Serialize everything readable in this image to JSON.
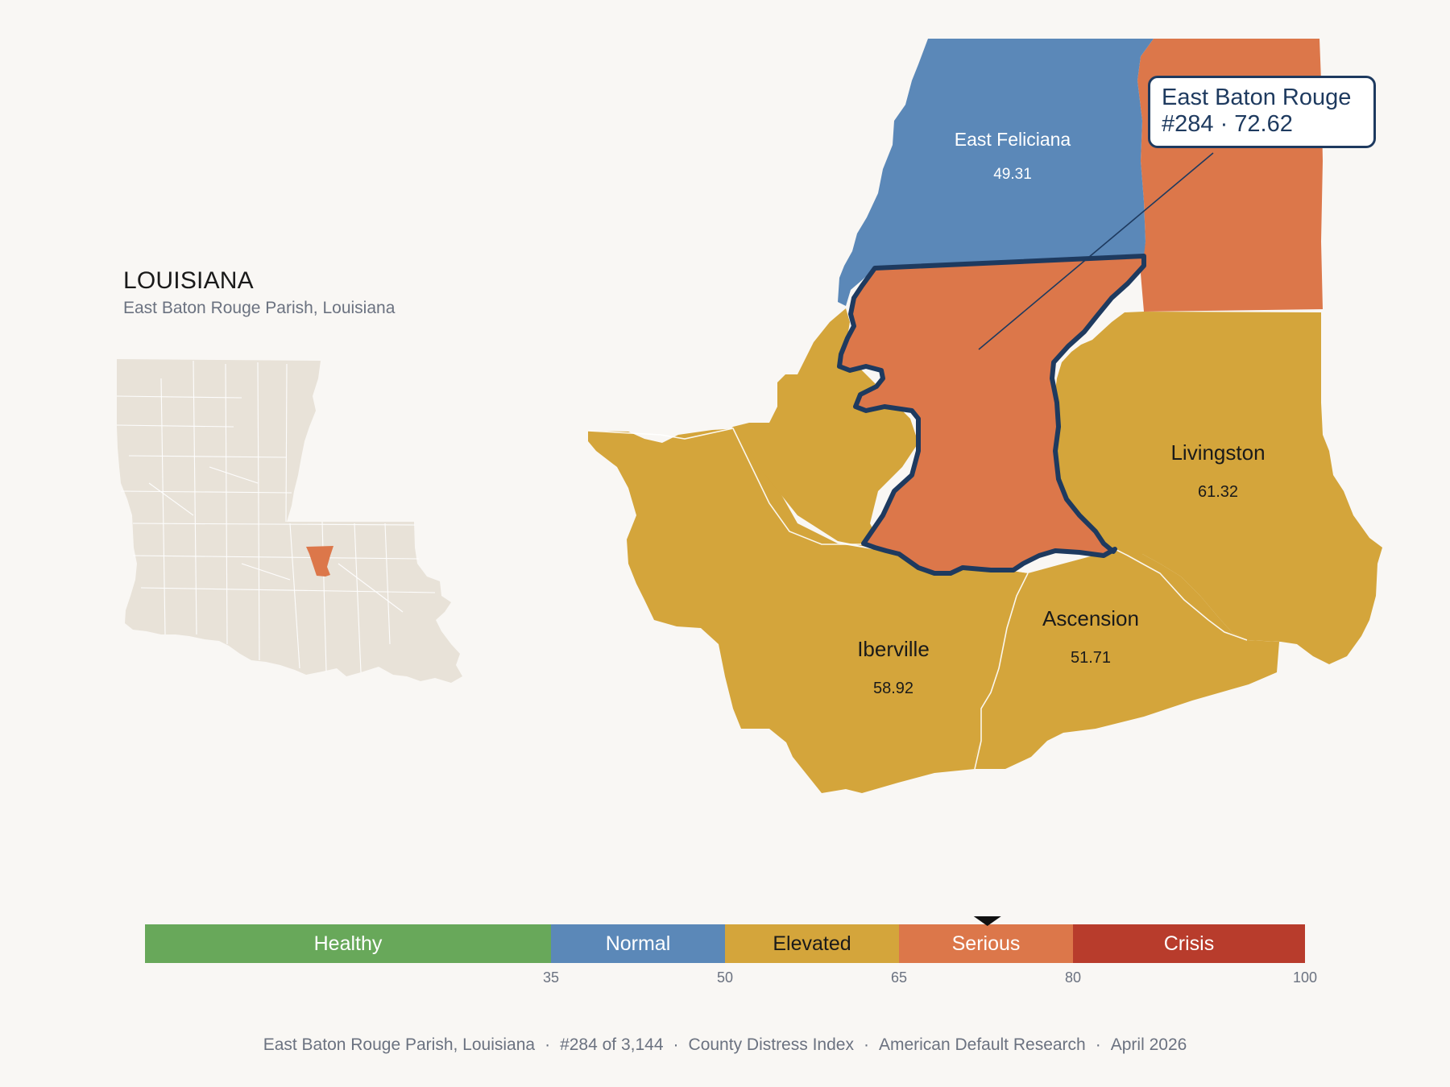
{
  "header": {
    "state": "LOUISIANA",
    "subtitle": "East Baton Rouge Parish, Louisiana"
  },
  "map": {
    "highlight": {
      "name": "East Baton Rouge",
      "callout_line1": "East Baton Rouge",
      "callout_line2": "#284 · 72.62",
      "rank": 284,
      "score": 72.62,
      "color": "#dc774a",
      "outline_color": "#1e3a5f"
    },
    "parishes": [
      {
        "name": "East Feliciana",
        "score": "49.31",
        "color": "#5b88b8",
        "text_color": "#ffffff"
      },
      {
        "name": "Livingston",
        "score": "61.32",
        "color": "#d4a53b",
        "text_color": "#1a1a1a"
      },
      {
        "name": "Iberville",
        "score": "58.92",
        "color": "#d4a53b",
        "text_color": "#1a1a1a"
      },
      {
        "name": "Ascension",
        "score": "51.71",
        "color": "#d4a53b",
        "text_color": "#1a1a1a"
      },
      {
        "name": "",
        "score": "",
        "color": "#dc774a",
        "text_color": "#ffffff"
      },
      {
        "name": "",
        "score": "",
        "color": "#d4a53b",
        "text_color": "#1a1a1a"
      }
    ],
    "inset_fill": "#e8e2d8",
    "inset_highlight": "#dc774a"
  },
  "legend": {
    "marker_value": 72.62,
    "categories": [
      {
        "label": "Healthy",
        "from": 0,
        "to": 35,
        "color": "#68a85a",
        "text_color": "#ffffff"
      },
      {
        "label": "Normal",
        "from": 35,
        "to": 50,
        "color": "#5b88b8",
        "text_color": "#ffffff"
      },
      {
        "label": "Elevated",
        "from": 50,
        "to": 65,
        "color": "#d4a53b",
        "text_color": "#1a1a1a"
      },
      {
        "label": "Serious",
        "from": 65,
        "to": 80,
        "color": "#dc774a",
        "text_color": "#ffffff"
      },
      {
        "label": "Crisis",
        "from": 80,
        "to": 100,
        "color": "#b83c2c",
        "text_color": "#ffffff"
      }
    ],
    "ticks": [
      "35",
      "50",
      "65",
      "80",
      "100"
    ]
  },
  "footer": {
    "parts": [
      "East Baton Rouge Parish, Louisiana",
      "#284 of 3,144",
      "County Distress Index",
      "American Default Research",
      "April 2026"
    ]
  }
}
